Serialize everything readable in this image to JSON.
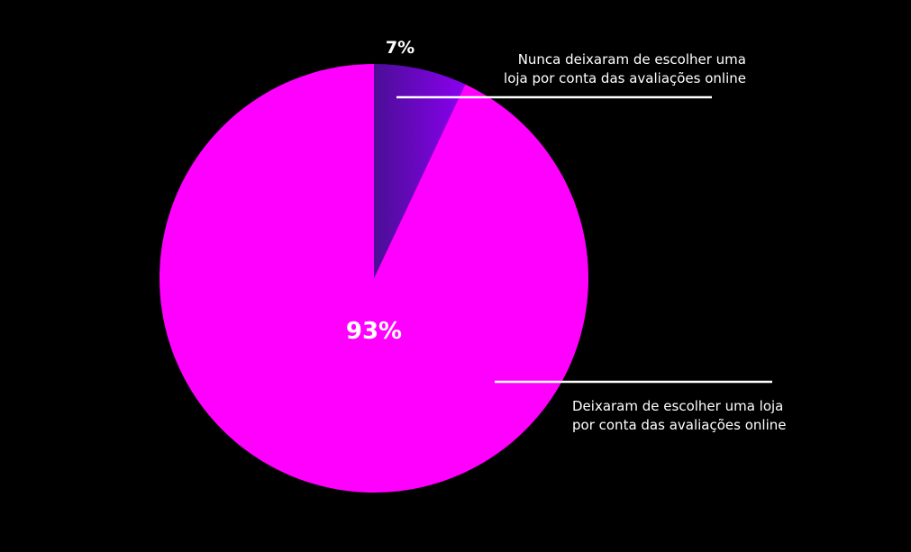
{
  "chart_data": {
    "type": "pie",
    "slices": [
      {
        "label_lines": [
          "Nunca deixaram de escolher uma",
          "loja por conta das avaliações online"
        ],
        "value": 7,
        "value_label": "7%",
        "color": "#5a0fb4"
      },
      {
        "label_lines": [
          "Deixaram de escolher uma loja",
          "por conta das avaliações online"
        ],
        "value": 93,
        "value_label": "93%",
        "color": "#ff00ff"
      }
    ],
    "legend": "callout-lines",
    "background": "#000000",
    "line_color": "#ffffff"
  }
}
